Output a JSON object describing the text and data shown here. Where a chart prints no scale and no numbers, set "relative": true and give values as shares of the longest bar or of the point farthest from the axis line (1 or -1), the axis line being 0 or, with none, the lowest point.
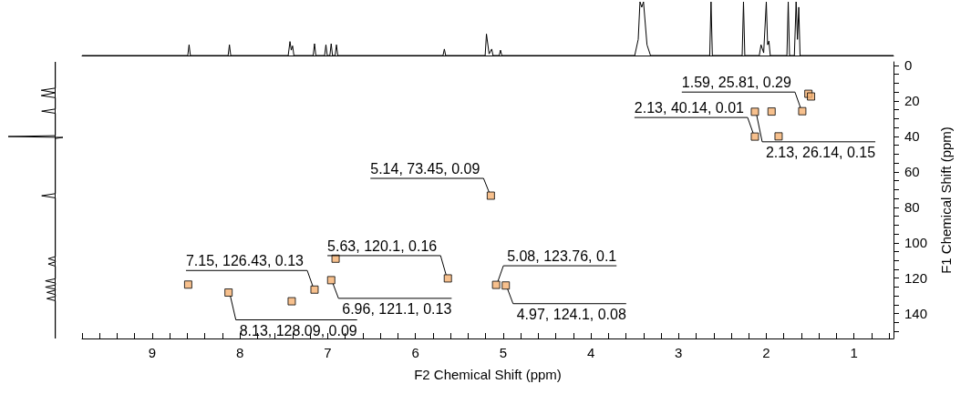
{
  "chart_data": [
    {
      "type": "line",
      "relative": true,
      "color": "#000000",
      "xlim": [
        9.8,
        0.55
      ],
      "tick_labels": false,
      "x": [
        9.8,
        8.595,
        8.58,
        8.565,
        8.135,
        8.12,
        8.105,
        7.45,
        7.43,
        7.415,
        7.4,
        7.385,
        7.165,
        7.15,
        7.135,
        7.035,
        7.02,
        7.005,
        6.975,
        6.96,
        6.945,
        6.915,
        6.9,
        6.885,
        5.685,
        5.67,
        5.655,
        5.205,
        5.19,
        5.16,
        5.13,
        5.115,
        5.045,
        5.03,
        5.015,
        3.5,
        3.46,
        3.44,
        3.42,
        3.4,
        3.36,
        3.32,
        2.645,
        2.63,
        2.615,
        2.275,
        2.26,
        2.245,
        2.08,
        2.06,
        2.03,
        2.0,
        1.985,
        1.97,
        1.955,
        1.765,
        1.75,
        1.735,
        1.68,
        1.66,
        1.645,
        1.63,
        1.615,
        0.55
      ],
      "values": [
        0,
        0,
        0.2,
        0,
        0,
        0.2,
        0,
        0,
        0.26,
        0.1,
        0.18,
        0,
        0,
        0.22,
        0,
        0,
        0.2,
        0,
        0,
        0.22,
        0,
        0,
        0.2,
        0,
        0,
        0.12,
        0,
        0,
        0.4,
        0.03,
        0.12,
        0,
        0,
        0.1,
        0,
        0,
        0.3,
        1,
        0.9,
        1,
        0.2,
        0,
        0,
        1,
        0,
        0,
        1,
        0,
        0,
        0.2,
        0.05,
        1,
        0.2,
        0.27,
        0,
        0,
        1,
        0,
        0,
        1,
        0.3,
        0.9,
        0,
        0
      ]
    },
    {
      "type": "line",
      "relative": true,
      "orientation": "horizontal",
      "color": "#000000",
      "ylim": [
        154,
        -2
      ],
      "tick_labels": false,
      "x": [
        -2,
        12.8,
        14,
        15.4,
        15.6,
        17,
        18.2,
        24.6,
        25.8,
        27,
        39.6,
        40.1,
        40.6,
        41.2,
        72.3,
        73.5,
        74.7,
        107.8,
        109,
        110.2,
        110.8,
        112,
        113.2,
        120.3,
        121.5,
        122.7,
        123.8,
        125,
        126.2,
        126.8,
        128,
        129.2,
        130.3,
        131.5,
        132.7,
        154
      ],
      "values": [
        0,
        0,
        -0.3,
        0,
        0,
        -0.3,
        0,
        0,
        -0.29,
        0,
        0,
        -1,
        0.16,
        0,
        0,
        -0.29,
        0,
        0,
        -0.15,
        0,
        0,
        -0.15,
        0,
        0,
        -0.21,
        0,
        0,
        -0.21,
        0,
        0,
        -0.18,
        0,
        0,
        -0.18,
        0,
        0
      ]
    },
    {
      "type": "scatter",
      "xlabel": "F2 Chemical Shift (ppm)",
      "ylabel": "F1 Chemical Shift (ppm)",
      "marker": "square",
      "xlim": [
        9.8,
        0.55
      ],
      "ylim": [
        154,
        -2
      ],
      "xticks": [
        {
          "value": 9.8,
          "label": null
        },
        {
          "value": 9.6,
          "label": null
        },
        {
          "value": 9.4,
          "label": null
        },
        {
          "value": 9.2,
          "label": null
        },
        9,
        {
          "value": 8.8,
          "label": null
        },
        {
          "value": 8.6,
          "label": null
        },
        {
          "value": 8.4,
          "label": null
        },
        {
          "value": 8.2,
          "label": null
        },
        8,
        {
          "value": 7.8,
          "label": null
        },
        {
          "value": 7.6,
          "label": null
        },
        {
          "value": 7.4,
          "label": null
        },
        {
          "value": 7.2,
          "label": null
        },
        7,
        {
          "value": 6.8,
          "label": null
        },
        {
          "value": 6.6,
          "label": null
        },
        {
          "value": 6.4,
          "label": null
        },
        {
          "value": 6.2,
          "label": null
        },
        6,
        {
          "value": 5.8,
          "label": null
        },
        {
          "value": 5.6,
          "label": null
        },
        {
          "value": 5.4,
          "label": null
        },
        {
          "value": 5.2,
          "label": null
        },
        5,
        {
          "value": 4.8,
          "label": null
        },
        {
          "value": 4.6,
          "label": null
        },
        {
          "value": 4.4,
          "label": null
        },
        {
          "value": 4.2,
          "label": null
        },
        4,
        {
          "value": 3.8,
          "label": null
        },
        {
          "value": 3.6,
          "label": null
        },
        {
          "value": 3.4,
          "label": null
        },
        {
          "value": 3.2,
          "label": null
        },
        3,
        {
          "value": 2.8,
          "label": null
        },
        {
          "value": 2.6,
          "label": null
        },
        {
          "value": 2.4,
          "label": null
        },
        {
          "value": 2.2,
          "label": null
        },
        2,
        {
          "value": 1.8,
          "label": null
        },
        {
          "value": 1.6,
          "label": null
        },
        {
          "value": 1.4,
          "label": null
        },
        {
          "value": 1.2,
          "label": null
        },
        1,
        {
          "value": 0.8,
          "label": null
        },
        {
          "value": 0.6,
          "label": null
        }
      ],
      "yticks": [
        0,
        {
          "value": 5,
          "label": null
        },
        {
          "value": 10,
          "label": null
        },
        {
          "value": 15,
          "label": null
        },
        20,
        {
          "value": 25,
          "label": null
        },
        {
          "value": 30,
          "label": null
        },
        {
          "value": 35,
          "label": null
        },
        40,
        {
          "value": 45,
          "label": null
        },
        {
          "value": 50,
          "label": null
        },
        {
          "value": 55,
          "label": null
        },
        60,
        {
          "value": 65,
          "label": null
        },
        {
          "value": 70,
          "label": null
        },
        {
          "value": 75,
          "label": null
        },
        80,
        {
          "value": 85,
          "label": null
        },
        {
          "value": 90,
          "label": null
        },
        {
          "value": 95,
          "label": null
        },
        100,
        {
          "value": 105,
          "label": null
        },
        {
          "value": 110,
          "label": null
        },
        {
          "value": 115,
          "label": null
        },
        120,
        {
          "value": 125,
          "label": null
        },
        {
          "value": 130,
          "label": null
        },
        {
          "value": 135,
          "label": null
        },
        140,
        {
          "value": 145,
          "label": null
        },
        {
          "value": 150,
          "label": null
        }
      ],
      "series": [
        {
          "color": "#f5b070",
          "x": [
            1.59,
            2.13,
            2.13,
            5.14,
            5.63,
            7.15,
            6.96,
            5.08,
            4.97,
            8.13,
            1.52,
            1.49,
            1.94,
            1.86,
            8.59,
            7.41,
            6.91
          ],
          "values": [
            25.81,
            40.14,
            26.14,
            73.45,
            120.1,
            126.43,
            121.1,
            123.76,
            124.1,
            128.09,
            16,
            17.5,
            26,
            40,
            123.6,
            133,
            109
          ]
        }
      ],
      "annotations": [
        {
          "text": "1.59, 25.81, 0.29",
          "x": 1.59,
          "y": 25.81
        },
        {
          "text": "2.13, 40.14, 0.01",
          "x": 2.13,
          "y": 40.14
        },
        {
          "text": "2.13, 26.14, 0.15",
          "x": 2.13,
          "y": 26.14
        },
        {
          "text": "5.14, 73.45, 0.09",
          "x": 5.14,
          "y": 73.45
        },
        {
          "text": "5.63, 120.1, 0.16",
          "x": 5.63,
          "y": 120.1
        },
        {
          "text": "7.15, 126.43, 0.13",
          "x": 7.15,
          "y": 126.43
        },
        {
          "text": "6.96, 121.1, 0.13",
          "x": 6.96,
          "y": 121.1
        },
        {
          "text": "5.08, 123.76, 0.1",
          "x": 5.08,
          "y": 123.76
        },
        {
          "text": "4.97, 124.1, 0.08",
          "x": 4.97,
          "y": 124.1
        },
        {
          "text": "8.13, 128.09, 0.09",
          "x": 8.13,
          "y": 128.09
        }
      ]
    }
  ]
}
